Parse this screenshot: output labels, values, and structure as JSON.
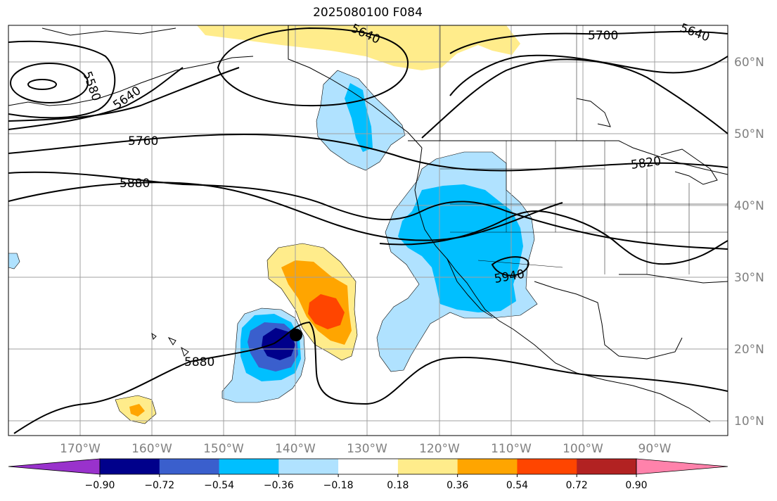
{
  "title": "2025080100 F084",
  "map": {
    "lat_labels": [
      "60°N",
      "50°N",
      "40°N",
      "30°N",
      "20°N",
      "10°N"
    ],
    "lon_labels": [
      "170°W",
      "160°W",
      "150°W",
      "140°W",
      "130°W",
      "120°W",
      "110°W",
      "100°W",
      "90°W"
    ],
    "contour_labels": [
      "5580",
      "5640",
      "5640",
      "5640",
      "5700",
      "5760",
      "5820",
      "5880",
      "5880",
      "5940"
    ],
    "marker": "storm-center-dot"
  },
  "colorbar": {
    "colors": [
      "#9932cc",
      "#00008b",
      "#3a5fcd",
      "#00bfff",
      "#b0e2ff",
      "#ffffff",
      "#ffec8b",
      "#ffa500",
      "#ff4500",
      "#b22222",
      "#ff82ab"
    ],
    "tick_labels": [
      "−0.90",
      "−0.72",
      "−0.54",
      "−0.36",
      "−0.18",
      "0.18",
      "0.36",
      "0.54",
      "0.72",
      "0.90"
    ]
  }
}
